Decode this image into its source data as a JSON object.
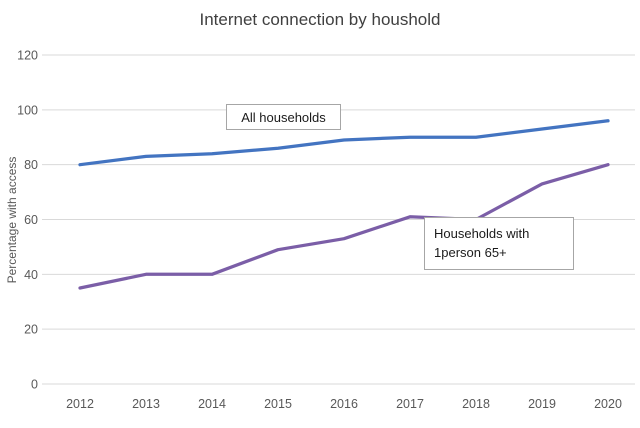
{
  "chart_data": {
    "type": "line",
    "title": "Internet connection by houshold",
    "xlabel": "",
    "ylabel": "Percentage with access",
    "categories": [
      "2012",
      "2013",
      "2014",
      "2015",
      "2016",
      "2017",
      "2018",
      "2019",
      "2020"
    ],
    "series": [
      {
        "name": "All households",
        "color": "#4374C1",
        "values": [
          80,
          83,
          84,
          86,
          89,
          90,
          90,
          93,
          96
        ]
      },
      {
        "name": "Households with 1person 65+",
        "color": "#7B5EA7",
        "values": [
          35,
          40,
          40,
          49,
          53,
          61,
          60,
          73,
          80
        ]
      }
    ],
    "ylim": [
      0,
      120
    ],
    "ytick_step": 20,
    "grid": true,
    "gridline_color": "#d9d9d9",
    "legend_position": "none",
    "annotations": [
      {
        "text": "All households"
      },
      {
        "text_line1": "Households with",
        "text_line2": "1person 65+"
      }
    ]
  }
}
